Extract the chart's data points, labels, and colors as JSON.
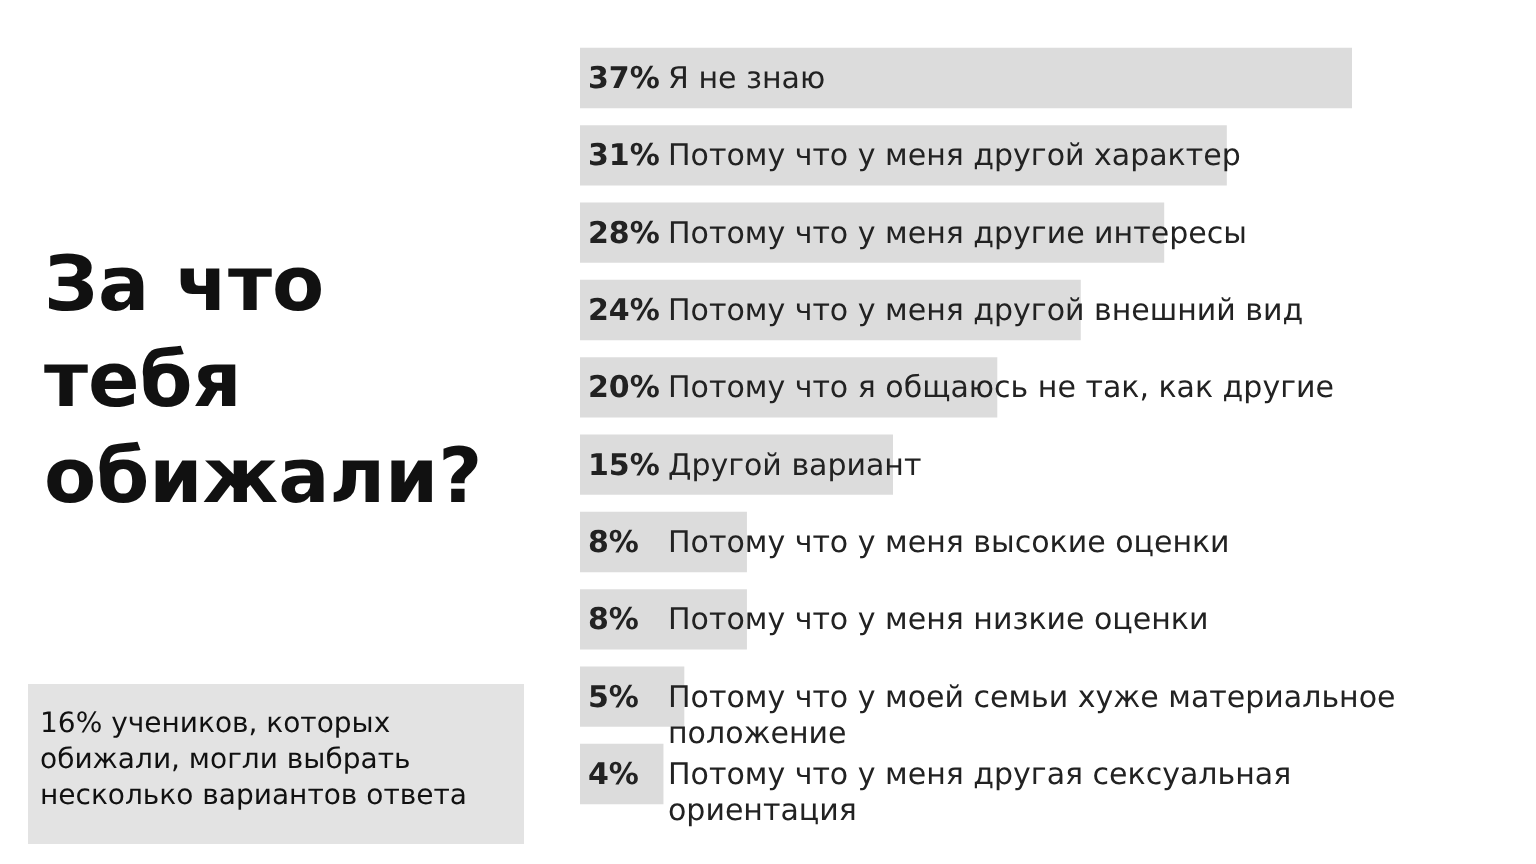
{
  "chart_data": {
    "type": "bar",
    "orientation": "horizontal",
    "title": "За что тебя обижали?",
    "categories": [
      "Я не знаю",
      "Потому что у меня другой характер",
      "Потому что у меня другие интересы",
      "Потому что у меня другой внешний вид",
      "Потому что я общаюсь не так, как другие",
      "Другой вариант",
      "Потому что у меня высокие оценки",
      "Потому что у меня низкие оценки",
      "Потому что у моей семьи хуже материальное положение",
      "Потому что у меня другая сексуальная ориентация"
    ],
    "values": [
      37,
      31,
      28,
      24,
      20,
      15,
      8,
      8,
      5,
      4
    ],
    "value_labels": [
      "37%",
      "31%",
      "28%",
      "24%",
      "20%",
      "15%",
      "8%",
      "8%",
      "5%",
      "4%"
    ],
    "color": "#dcdcdc",
    "annotations": [
      "16% учеников, которых обижали, могли выбрать несколько вариантов ответа"
    ]
  }
}
